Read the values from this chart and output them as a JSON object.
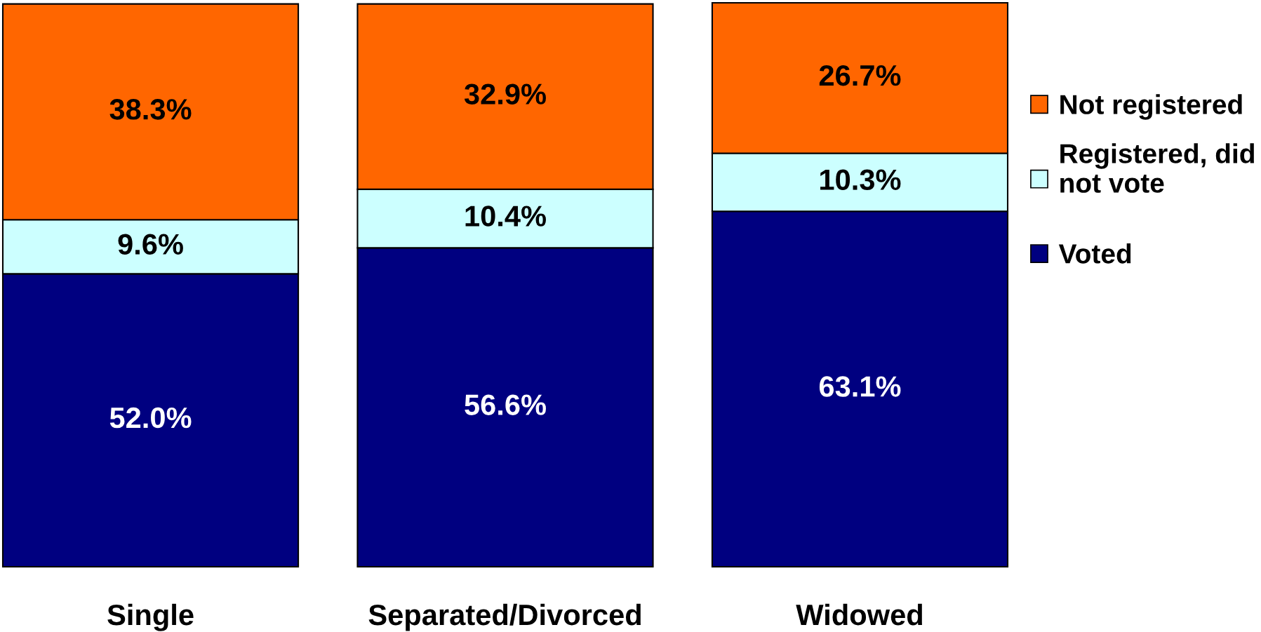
{
  "chart_data": {
    "type": "bar",
    "stacked": true,
    "categories": [
      "Single",
      "Separated/Divorced",
      "Widowed"
    ],
    "series": [
      {
        "name": "Voted",
        "color": "#000080",
        "values": [
          52.0,
          56.6,
          63.1
        ],
        "value_labels": [
          "52.0%",
          "56.6%",
          "63.1%"
        ]
      },
      {
        "name": "Registered, did not vote",
        "color": "#ccffff",
        "values": [
          9.6,
          10.4,
          10.3
        ],
        "value_labels": [
          "9.6%",
          "10.4%",
          "10.3%"
        ]
      },
      {
        "name": "Not registered",
        "color": "#ff6600",
        "values": [
          38.3,
          32.9,
          26.7
        ],
        "value_labels": [
          "38.3%",
          "32.9%",
          "26.7%"
        ]
      }
    ],
    "legend": "right"
  }
}
